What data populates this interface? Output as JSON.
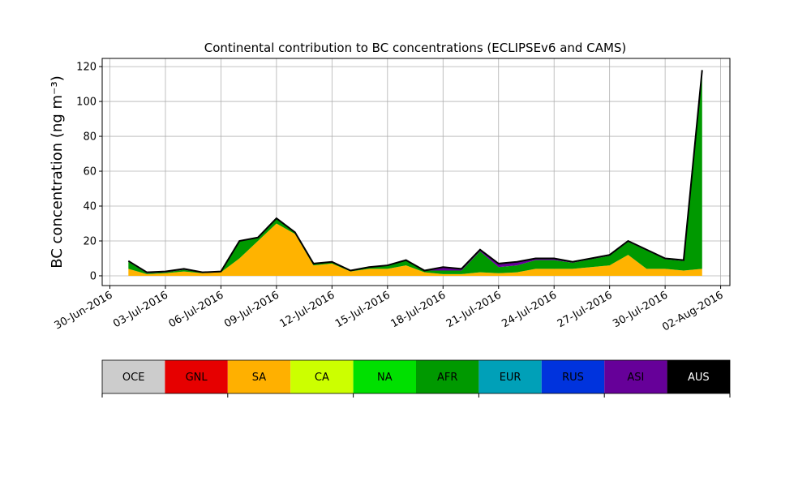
{
  "chart_data": {
    "type": "stacked_area",
    "title": "Continental contribution to BC concentrations (ECLIPSEv6 and CAMS)",
    "y_label": "BC concentration (ng m⁻³)",
    "x": [
      "2016-07-01",
      "2016-07-02",
      "2016-07-03",
      "2016-07-04",
      "2016-07-05",
      "2016-07-06",
      "2016-07-07",
      "2016-07-08",
      "2016-07-09",
      "2016-07-10",
      "2016-07-11",
      "2016-07-12",
      "2016-07-13",
      "2016-07-14",
      "2016-07-15",
      "2016-07-16",
      "2016-07-17",
      "2016-07-18",
      "2016-07-19",
      "2016-07-20",
      "2016-07-21",
      "2016-07-22",
      "2016-07-23",
      "2016-07-24",
      "2016-07-25",
      "2016-07-26",
      "2016-07-27",
      "2016-07-28",
      "2016-07-29",
      "2016-07-30",
      "2016-07-31",
      "2016-08-01"
    ],
    "series": [
      {
        "name": "SA",
        "color": "#ffb300",
        "values": [
          4,
          1,
          1.5,
          2.5,
          1.5,
          2,
          10,
          20,
          30,
          24,
          6,
          7,
          2.5,
          4,
          4,
          6,
          2,
          1,
          1,
          2,
          1.5,
          2,
          4,
          4,
          4,
          5,
          6,
          12,
          4,
          4,
          3,
          4
        ]
      },
      {
        "name": "AFR",
        "color": "#009900",
        "values": [
          4,
          0.5,
          0.5,
          1,
          0.3,
          0.5,
          10,
          2,
          3,
          1,
          1,
          1,
          0.5,
          1,
          2,
          3,
          1,
          2,
          2,
          12,
          3.5,
          4,
          5,
          5,
          3.5,
          4.5,
          5.5,
          7.5,
          10.5,
          5.5,
          5.5,
          113
        ]
      },
      {
        "name": "ASI",
        "color": "#660099",
        "values": [
          0.5,
          0.5,
          0.5,
          0.5,
          0.2,
          0,
          0,
          0,
          0,
          0,
          0,
          0,
          0,
          0,
          0,
          0,
          0,
          2,
          1,
          1,
          2,
          2,
          1,
          1,
          0.5,
          0.5,
          0.5,
          0.5,
          0.5,
          0.5,
          0.5,
          1
        ]
      }
    ],
    "outline_color": "#000000",
    "xlim": [
      "2016-06-29T14:00",
      "2016-08-02T12:00"
    ],
    "xticks": [
      {
        "value": "2016-06-30",
        "label": "30-Jun-2016"
      },
      {
        "value": "2016-07-03",
        "label": "03-Jul-2016"
      },
      {
        "value": "2016-07-06",
        "label": "06-Jul-2016"
      },
      {
        "value": "2016-07-09",
        "label": "09-Jul-2016"
      },
      {
        "value": "2016-07-12",
        "label": "12-Jul-2016"
      },
      {
        "value": "2016-07-15",
        "label": "15-Jul-2016"
      },
      {
        "value": "2016-07-18",
        "label": "18-Jul-2016"
      },
      {
        "value": "2016-07-21",
        "label": "21-Jul-2016"
      },
      {
        "value": "2016-07-24",
        "label": "24-Jul-2016"
      },
      {
        "value": "2016-07-27",
        "label": "27-Jul-2016"
      },
      {
        "value": "2016-07-30",
        "label": "30-Jul-2016"
      },
      {
        "value": "2016-08-02",
        "label": "02-Aug-2016"
      }
    ],
    "ylim": [
      -5.6,
      124.7
    ],
    "yticks": [
      0,
      20,
      40,
      60,
      80,
      100,
      120
    ],
    "grid": true,
    "colorbar": {
      "labels": [
        "OCE",
        "GNL",
        "SA",
        "CA",
        "NA",
        "AFR",
        "EUR",
        "RUS",
        "ASI",
        "AUS"
      ],
      "colors": [
        "#cccccc",
        "#e60000",
        "#ffb000",
        "#ccff00",
        "#00e000",
        "#009900",
        "#00a0b8",
        "#0033dd",
        "#660099",
        "#000000"
      ]
    }
  }
}
